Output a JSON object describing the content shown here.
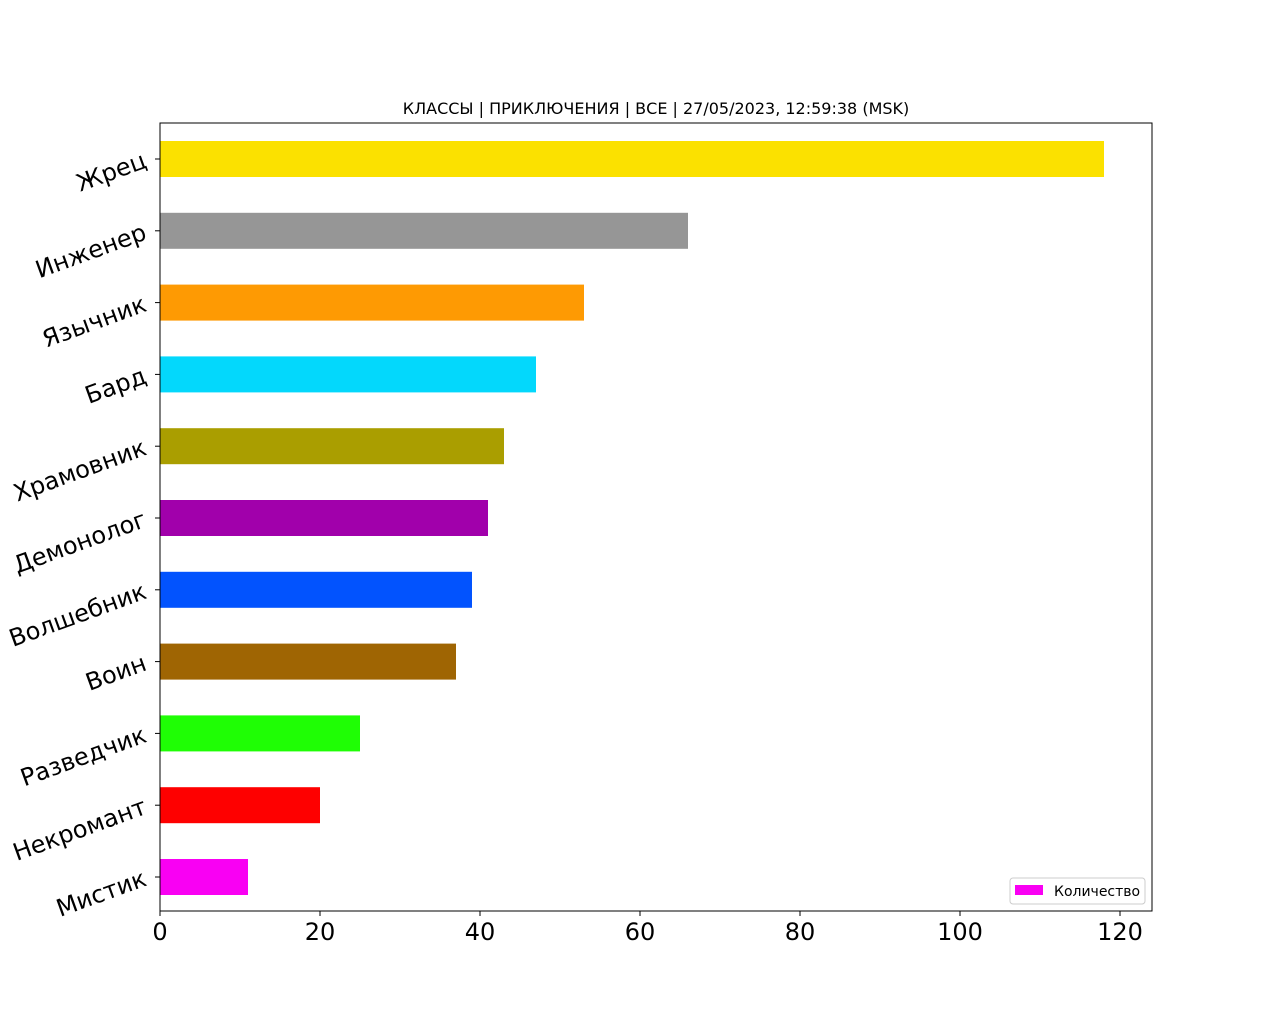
{
  "chart_data": {
    "type": "bar",
    "orientation": "horizontal",
    "title": "КЛАССЫ | ПРИКЛЮЧЕНИЯ | ВСЕ | 27/05/2023, 12:59:38 (MSK)",
    "xlabel": "",
    "ylabel": "",
    "xlim": [
      0,
      124
    ],
    "x_ticks": [
      "0",
      "20",
      "40",
      "60",
      "80",
      "100",
      "120"
    ],
    "categories": [
      "Жрец",
      "Инженер",
      "Язычник",
      "Бард",
      "Храмовник",
      "Демонолог",
      "Волшебник",
      "Воин",
      "Разведчик",
      "Некромант",
      "Мистик"
    ],
    "values": [
      118,
      66,
      53,
      47,
      43,
      41,
      39,
      37,
      25,
      20,
      11
    ],
    "colors": [
      "#fbe100",
      "#969696",
      "#fe9a03",
      "#03d8fc",
      "#aa9e00",
      "#a100ab",
      "#0253fe",
      "#9f6503",
      "#1ffe05",
      "#fe0000",
      "#f900f3"
    ],
    "grid": false,
    "legend": {
      "placement": "lower-right",
      "entries": [
        {
          "name": "Количество",
          "color": "#f900f3"
        }
      ]
    }
  }
}
